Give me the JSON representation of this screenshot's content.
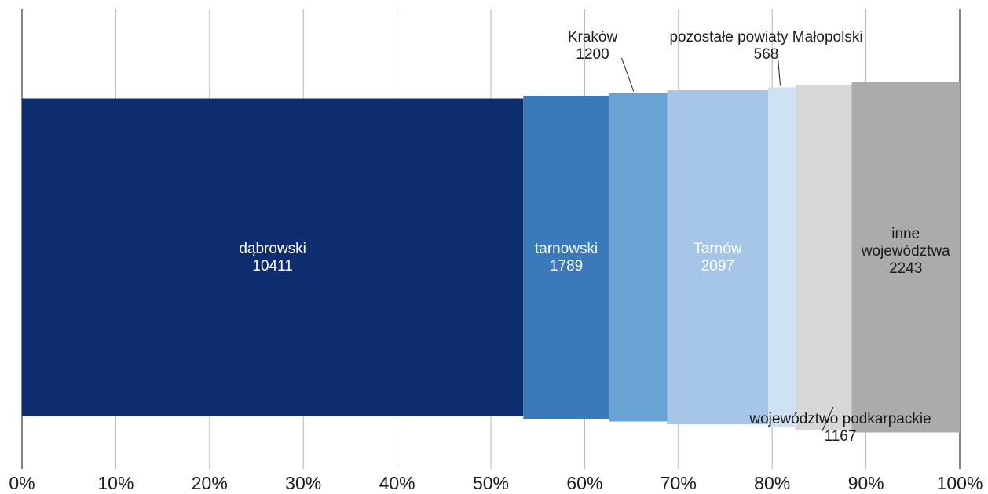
{
  "chart_data": {
    "type": "bar",
    "orientation": "horizontal-stacked-100",
    "grid": true,
    "xlim": [
      0,
      100
    ],
    "x_ticks": [
      "0%",
      "10%",
      "20%",
      "30%",
      "40%",
      "50%",
      "60%",
      "70%",
      "80%",
      "90%",
      "100%"
    ],
    "segments": [
      {
        "name": "dąbrowski",
        "value": 10411,
        "color": "#0e2d6e",
        "label_color": "#ffffff",
        "label_lines": [
          "dąbrowski",
          "10411"
        ],
        "label_position": "inside"
      },
      {
        "name": "tarnowski",
        "value": 1789,
        "color": "#3a7aba",
        "label_color": "#ffffff",
        "label_lines": [
          "tarnowski",
          "1789"
        ],
        "label_position": "inside"
      },
      {
        "name": "Kraków",
        "value": 1200,
        "color": "#69a3d4",
        "label_color": "#1a1a1a",
        "label_lines": [
          "Kraków",
          "1200"
        ],
        "label_position": "above"
      },
      {
        "name": "Tarnów",
        "value": 2097,
        "color": "#a5c6e6",
        "label_color": "#ffffff",
        "label_lines": [
          "Tarnów",
          "2097"
        ],
        "label_position": "inside"
      },
      {
        "name": "pozostałe powiaty Małopolski",
        "value": 568,
        "color": "#cfe2f4",
        "label_color": "#1a1a1a",
        "label_lines": [
          "pozostałe powiaty Małopolski",
          "568"
        ],
        "label_position": "above"
      },
      {
        "name": "województwo podkarpackie",
        "value": 1167,
        "color": "#d8d8d8",
        "label_color": "#1a1a1a",
        "label_lines": [
          "województwo podkarpackie",
          "1167"
        ],
        "label_position": "below"
      },
      {
        "name": "inne województwa",
        "value": 2243,
        "color": "#ababab",
        "label_color": "#1a1a1a",
        "label_lines": [
          "inne",
          "województwa",
          "2243"
        ],
        "label_position": "inside"
      }
    ]
  }
}
